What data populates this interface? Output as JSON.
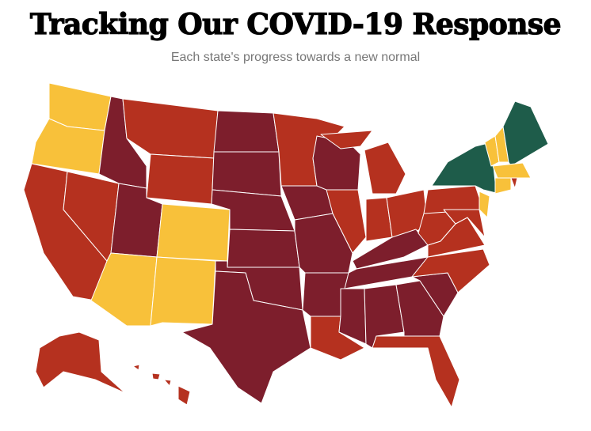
{
  "header": {
    "title": "Tracking Our COVID-19 Response",
    "subtitle": "Each state's progress towards a new normal"
  }
}
